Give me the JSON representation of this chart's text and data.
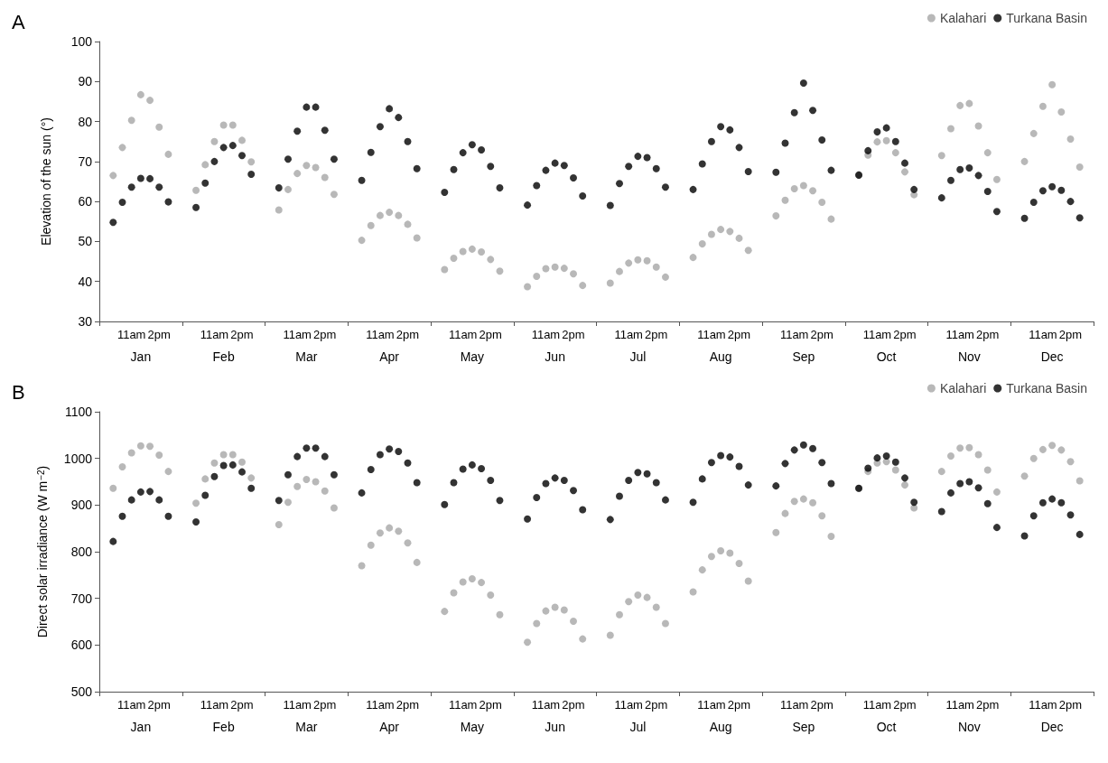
{
  "chart_data": [
    {
      "type": "scatter",
      "title": "A",
      "ylabel": "Elevation of the sun (°)",
      "categories": [
        null,
        null,
        null,
        "11am",
        null,
        null,
        "2pm",
        null,
        null,
        null,
        null,
        null,
        "11am",
        null,
        null,
        "2pm",
        null,
        null,
        null,
        null,
        null,
        "11am",
        null,
        null,
        "2pm",
        null,
        null,
        null,
        null,
        null,
        "11am",
        null,
        null,
        "2pm",
        null,
        null,
        null,
        null,
        null,
        "11am",
        null,
        null,
        "2pm",
        null,
        null,
        null,
        null,
        null,
        "11am",
        null,
        null,
        "2pm",
        null,
        null,
        null,
        null,
        null,
        "11am",
        null,
        null,
        "2pm",
        null,
        null,
        null,
        null,
        null,
        "11am",
        null,
        null,
        "2pm",
        null,
        null,
        null,
        null,
        null,
        "11am",
        null,
        null,
        "2pm",
        null,
        null,
        null,
        null,
        null,
        "11am",
        null,
        null,
        "2pm",
        null,
        null,
        null,
        null,
        null,
        "11am",
        null,
        null,
        "2pm",
        null,
        null,
        null,
        null,
        null,
        "11am",
        null,
        null,
        "2pm",
        null,
        null
      ],
      "annotations": [
        "Jan",
        "Feb",
        "Mar",
        "Apr",
        "May",
        "Jun",
        "Jul",
        "Aug",
        "Sep",
        "Oct",
        "Nov",
        "Dec"
      ],
      "series": [
        {
          "name": "Kalahari",
          "color": "#a6a6a6",
          "values": [
            null,
            66.5,
            73.5,
            80.3,
            86.7,
            85.3,
            78.6,
            71.8,
            null,
            null,
            62.8,
            69.2,
            75.0,
            79.1,
            79.1,
            75.3,
            69.9,
            null,
            null,
            57.9,
            63.0,
            67.0,
            69.0,
            68.5,
            66.0,
            61.8,
            null,
            null,
            50.3,
            54.0,
            56.5,
            57.3,
            56.5,
            54.3,
            50.9,
            null,
            null,
            43.0,
            45.8,
            47.5,
            48.1,
            47.4,
            45.5,
            42.6,
            null,
            null,
            38.7,
            41.3,
            43.2,
            43.6,
            43.3,
            41.9,
            39.0,
            null,
            null,
            39.6,
            42.5,
            44.6,
            45.4,
            45.2,
            43.6,
            41.1,
            null,
            null,
            46.0,
            49.4,
            51.8,
            53.0,
            52.5,
            50.8,
            47.8,
            null,
            null,
            56.4,
            60.3,
            63.2,
            64.0,
            62.7,
            59.8,
            55.6,
            null,
            null,
            66.7,
            71.6,
            74.9,
            75.2,
            72.2,
            67.4,
            61.7,
            null,
            null,
            71.5,
            78.2,
            84.0,
            84.5,
            78.9,
            72.2,
            65.5,
            null,
            null,
            70.0,
            77.0,
            83.8,
            89.2,
            82.4,
            75.6,
            68.6,
            null
          ]
        },
        {
          "name": "Turkana Basin",
          "color": "#000000",
          "values": [
            null,
            54.8,
            59.8,
            63.6,
            65.8,
            65.7,
            63.6,
            59.9,
            null,
            null,
            58.5,
            64.6,
            70.0,
            73.5,
            74.0,
            71.5,
            66.8,
            null,
            null,
            63.4,
            70.6,
            77.6,
            83.6,
            83.6,
            77.8,
            70.6,
            null,
            null,
            65.3,
            72.3,
            78.7,
            83.2,
            81.0,
            75.0,
            68.2,
            null,
            null,
            62.3,
            68.0,
            72.2,
            74.2,
            72.9,
            68.8,
            63.4,
            null,
            null,
            59.1,
            64.0,
            67.8,
            69.6,
            69.0,
            65.9,
            61.4,
            null,
            null,
            59.0,
            64.5,
            68.8,
            71.3,
            71.0,
            68.2,
            63.6,
            null,
            null,
            63.0,
            69.4,
            75.0,
            78.7,
            77.9,
            73.5,
            67.5,
            null,
            null,
            67.3,
            74.6,
            82.2,
            89.6,
            82.8,
            75.4,
            67.8,
            null,
            null,
            66.6,
            72.7,
            77.4,
            78.4,
            75.0,
            69.6,
            63.0,
            null,
            null,
            60.9,
            65.3,
            68.0,
            68.4,
            66.5,
            62.5,
            57.5,
            null,
            null,
            55.8,
            59.8,
            62.7,
            63.7,
            62.8,
            60.0,
            55.9,
            null
          ]
        }
      ],
      "ylim": [
        30,
        100
      ],
      "yticks": [
        30,
        40,
        50,
        60,
        70,
        80,
        90,
        100
      ],
      "grid": false,
      "legend": "top right",
      "marker": "circle"
    },
    {
      "type": "scatter",
      "title": "B",
      "ylabel": "Direct solar irradiance (W m$^{−2}$)",
      "categories": [
        null,
        null,
        null,
        "11am",
        null,
        null,
        "2pm",
        null,
        null,
        null,
        null,
        null,
        "11am",
        null,
        null,
        "2pm",
        null,
        null,
        null,
        null,
        null,
        "11am",
        null,
        null,
        "2pm",
        null,
        null,
        null,
        null,
        null,
        "11am",
        null,
        null,
        "2pm",
        null,
        null,
        null,
        null,
        null,
        "11am",
        null,
        null,
        "2pm",
        null,
        null,
        null,
        null,
        null,
        "11am",
        null,
        null,
        "2pm",
        null,
        null,
        null,
        null,
        null,
        "11am",
        null,
        null,
        "2pm",
        null,
        null,
        null,
        null,
        null,
        "11am",
        null,
        null,
        "2pm",
        null,
        null,
        null,
        null,
        null,
        "11am",
        null,
        null,
        "2pm",
        null,
        null,
        null,
        null,
        null,
        "11am",
        null,
        null,
        "2pm",
        null,
        null,
        null,
        null,
        null,
        "11am",
        null,
        null,
        "2pm",
        null,
        null,
        null,
        null,
        null,
        "11am",
        null,
        null,
        "2pm",
        null,
        null
      ],
      "annotations": [
        "Jan",
        "Feb",
        "Mar",
        "Apr",
        "May",
        "Jun",
        "Jul",
        "Aug",
        "Sep",
        "Oct",
        "Nov",
        "Dec"
      ],
      "series": [
        {
          "name": "Kalahari",
          "color": "#a6a6a6",
          "values": [
            null,
            936,
            982,
            1012,
            1027,
            1026,
            1007,
            972,
            null,
            null,
            904,
            956,
            990,
            1008,
            1008,
            992,
            958,
            null,
            null,
            858,
            906,
            940,
            955,
            950,
            930,
            894,
            null,
            null,
            770,
            814,
            840,
            851,
            844,
            819,
            777,
            null,
            null,
            672,
            712,
            735,
            742,
            734,
            707,
            665,
            null,
            null,
            606,
            646,
            673,
            681,
            675,
            651,
            613,
            null,
            null,
            621,
            665,
            693,
            707,
            702,
            681,
            646,
            null,
            null,
            714,
            761,
            790,
            802,
            797,
            775,
            737,
            null,
            null,
            841,
            882,
            908,
            913,
            905,
            877,
            833,
            null,
            null,
            936,
            972,
            990,
            993,
            975,
            943,
            894,
            null,
            null,
            972,
            1005,
            1022,
            1023,
            1008,
            975,
            928,
            null,
            null,
            962,
            1000,
            1019,
            1028,
            1018,
            993,
            952,
            null
          ]
        },
        {
          "name": "Turkana Basin",
          "color": "#000000",
          "values": [
            null,
            822,
            876,
            911,
            928,
            929,
            911,
            876,
            null,
            null,
            864,
            921,
            961,
            985,
            986,
            971,
            936,
            null,
            null,
            910,
            965,
            1004,
            1022,
            1022,
            1004,
            965,
            null,
            null,
            926,
            976,
            1008,
            1020,
            1015,
            990,
            948,
            null,
            null,
            901,
            948,
            977,
            986,
            978,
            953,
            910,
            null,
            null,
            870,
            916,
            946,
            958,
            953,
            931,
            890,
            null,
            null,
            869,
            919,
            953,
            970,
            967,
            948,
            911,
            null,
            null,
            906,
            956,
            991,
            1006,
            1003,
            983,
            943,
            null,
            null,
            941,
            989,
            1018,
            1029,
            1021,
            991,
            946,
            null,
            null,
            936,
            979,
            1001,
            1005,
            992,
            958,
            906,
            null,
            null,
            886,
            926,
            946,
            950,
            937,
            903,
            852,
            null,
            null,
            834,
            877,
            905,
            913,
            905,
            879,
            837,
            null
          ]
        }
      ],
      "ylim": [
        500,
        1100
      ],
      "yticks": [
        500,
        600,
        700,
        800,
        900,
        1000,
        1100
      ],
      "grid": false,
      "legend": "top right",
      "marker": "circle"
    }
  ]
}
